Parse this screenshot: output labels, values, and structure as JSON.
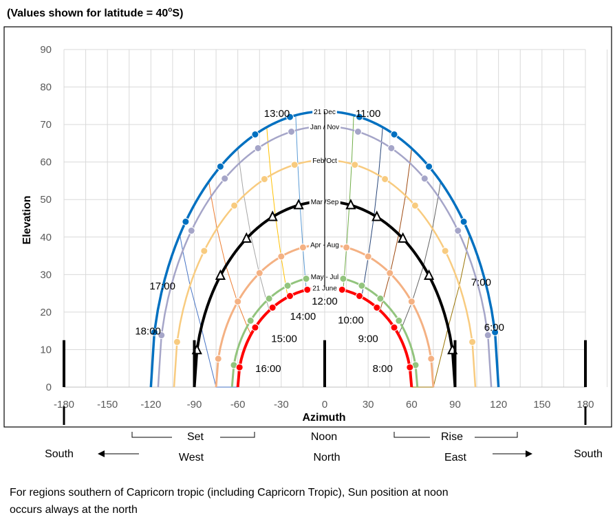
{
  "header": {
    "note_main": "(Values shown for latitude = 40",
    "note_sup": "o",
    "note_end": "S)"
  },
  "chart_data": {
    "type": "line",
    "xlabel": "Azimuth",
    "ylabel": "Elevation",
    "xlim": [
      -180,
      180
    ],
    "ylim": [
      0,
      90
    ],
    "x_ticks": [
      -180,
      -150,
      -120,
      -90,
      -60,
      -30,
      0,
      30,
      60,
      90,
      120,
      150,
      180
    ],
    "y_ticks": [
      0,
      10,
      20,
      30,
      40,
      50,
      60,
      70,
      80,
      90
    ],
    "grid": "vertical and horizontal",
    "series": [
      {
        "name": "21 Dec",
        "color": "#0070C0",
        "width": 3.5,
        "azimuth": 120,
        "max": 73.5,
        "marker": "circle"
      },
      {
        "name": "Jan / Nov",
        "color": "#A5A5C8",
        "width": 2.5,
        "azimuth": 115,
        "max": 69.5,
        "marker": "circle"
      },
      {
        "name": "Feb/Oct",
        "color": "#F8CB7F",
        "width": 2.5,
        "azimuth": 104,
        "max": 60.5,
        "marker": "circle"
      },
      {
        "name": "Mar /Sep",
        "color": "#000000",
        "width": 4,
        "azimuth": 90,
        "max": 49.5,
        "marker": "triangle"
      },
      {
        "name": "Apr - Aug",
        "color": "#F4B183",
        "width": 3,
        "azimuth": 75,
        "max": 38,
        "marker": "circle"
      },
      {
        "name": "May - Jul",
        "color": "#92C47D",
        "width": 3,
        "azimuth": 64,
        "max": 29.5,
        "marker": "circle"
      },
      {
        "name": "21 June",
        "color": "#FF0000",
        "width": 4,
        "azimuth": 60,
        "max": 26.5,
        "marker": "circle"
      }
    ],
    "hour_labels": [
      {
        "text": "13:00",
        "az": -33,
        "el": 72
      },
      {
        "text": "11:00",
        "az": 30,
        "el": 72
      },
      {
        "text": "17:00",
        "az": -112,
        "el": 26
      },
      {
        "text": "7:00",
        "az": 108,
        "el": 27
      },
      {
        "text": "18:00",
        "az": -122,
        "el": 14
      },
      {
        "text": "6:00",
        "az": 117,
        "el": 15
      },
      {
        "text": "14:00",
        "az": -15,
        "el": 18
      },
      {
        "text": "10:00",
        "az": 18,
        "el": 17
      },
      {
        "text": "12:00",
        "az": 0,
        "el": 22
      },
      {
        "text": "15:00",
        "az": -28,
        "el": 12
      },
      {
        "text": "9:00",
        "az": 30,
        "el": 12
      },
      {
        "text": "16:00",
        "az": -39,
        "el": 4
      },
      {
        "text": "8:00",
        "az": 40,
        "el": 4
      }
    ],
    "markers_vertical": [
      -180,
      -90,
      0,
      90,
      180
    ]
  },
  "bottom": {
    "set": "Set",
    "noon": "Noon",
    "rise": "Rise",
    "south_left": "South",
    "west": "West",
    "north": "North",
    "east": "East",
    "south_right": "South"
  },
  "caption": {
    "line1": "For regions southern of Capricorn tropic (including Capricorn Tropic), Sun position at noon",
    "line2": "occurs always at the north"
  }
}
